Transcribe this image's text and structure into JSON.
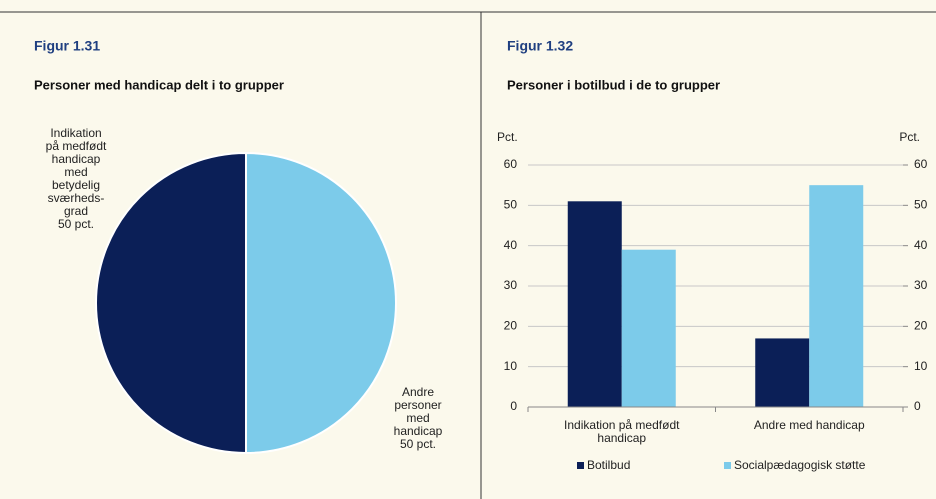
{
  "chart_data": [
    {
      "type": "pie",
      "figure_label": "Figur 1.31",
      "title": "Personer med handicap delt i to grupper",
      "labels": [
        [
          "Indikation",
          "på medfødt",
          "handicap",
          "med",
          "betydelig",
          "sværheds-",
          "grad"
        ],
        [
          "Andre",
          "personer",
          "med",
          "handicap"
        ]
      ],
      "values": [
        50,
        50
      ],
      "value_labels": [
        "50 pct.",
        "50 pct."
      ],
      "colors": [
        "#0b1f57",
        "#7ccbea"
      ]
    },
    {
      "type": "bar",
      "figure_label": "Figur 1.32",
      "title": "Personer i botilbud i de to grupper",
      "ylabel": "Pct.",
      "y2label": "Pct.",
      "categories": [
        "Indikation på medfødt handicap",
        "Andre med handicap"
      ],
      "series": [
        {
          "name": "Botilbud",
          "color": "#0b1f57",
          "values": [
            51,
            17
          ]
        },
        {
          "name": "Socialpædagogisk støtte",
          "color": "#7ccbea",
          "values": [
            39,
            55
          ]
        }
      ],
      "ylim": [
        0,
        60
      ],
      "yticks": [
        0,
        10,
        20,
        30,
        40,
        50,
        60
      ],
      "y2lim": [
        0,
        60
      ],
      "y2ticks": [
        0,
        10,
        20,
        30,
        40,
        50,
        60
      ],
      "grid": true
    }
  ]
}
